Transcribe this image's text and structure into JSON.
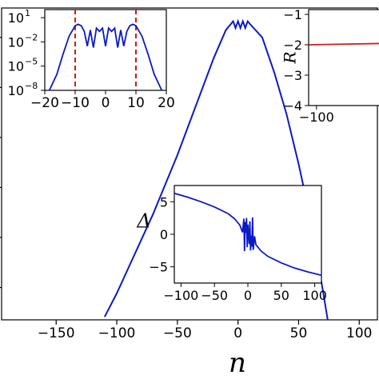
{
  "chart_data": [
    {
      "panel": "main",
      "type": "line",
      "xlabel": "n",
      "xlim": [
        -195,
        115
      ],
      "xticks": [
        "−150",
        "−100",
        "−50",
        "0",
        "50",
        "100"
      ],
      "xtick_values": [
        -150,
        -100,
        -50,
        0,
        50,
        100
      ],
      "color": "#0a1ac8",
      "series": [
        {
          "x": [
            -110,
            -100,
            -90,
            -80,
            -70,
            -60,
            -50,
            -40,
            -30,
            -20,
            -10,
            -6,
            -4,
            -2,
            0,
            2,
            4,
            6,
            8,
            10,
            20,
            30,
            40,
            50,
            60,
            70,
            74
          ],
          "y": [
            -0.02,
            0.06,
            0.15,
            0.24,
            0.33,
            0.43,
            0.53,
            0.64,
            0.75,
            0.86,
            0.955,
            0.975,
            0.985,
            0.962,
            0.985,
            0.962,
            0.985,
            0.962,
            0.985,
            0.975,
            0.93,
            0.81,
            0.67,
            0.5,
            0.31,
            0.07,
            -0.03
          ]
        }
      ],
      "ylim": [
        -0.03,
        1.03
      ]
    },
    {
      "panel": "inset-top-left",
      "type": "line",
      "yscale": "log",
      "xlim": [
        -20,
        20
      ],
      "ylim": [
        1e-08,
        100
      ],
      "xticks": [
        "−20",
        "−10",
        "0",
        "10",
        "20"
      ],
      "xtick_values": [
        -20,
        -10,
        0,
        10,
        20
      ],
      "yticks": [
        "10",
        "10",
        "10",
        "10"
      ],
      "ytick_exponents": [
        "1",
        "−2",
        "−5",
        "−8"
      ],
      "ytick_values": [
        10,
        0.01,
        1e-05,
        1e-08
      ],
      "vlines": [
        -10,
        10
      ],
      "vline_color": "#cc0000",
      "color": "#0a1ac8",
      "series": [
        {
          "x": [
            -18.5,
            -16,
            -14,
            -12,
            -10,
            -9,
            -8,
            -7,
            -6,
            -5,
            -4,
            -3,
            -2,
            -1,
            0,
            1,
            2,
            3,
            4,
            5,
            6,
            7,
            8,
            9,
            10,
            12,
            14,
            16,
            18.5
          ],
          "y": [
            1e-08,
            1e-06,
            0.0003,
            0.05,
            1,
            1.5,
            1,
            0.2,
            0.003,
            0.3,
            0.002,
            0.5,
            0.2,
            0.5,
            0.003,
            0.5,
            0.2,
            0.5,
            0.002,
            0.3,
            0.003,
            0.2,
            1,
            1.5,
            1,
            0.05,
            0.0003,
            1e-06,
            1e-08
          ]
        }
      ]
    },
    {
      "panel": "inset-top-right",
      "type": "line",
      "ylabel": "R",
      "xlim": [
        -110,
        110
      ],
      "ylim": [
        -4,
        -1
      ],
      "xticks": [
        "−100"
      ],
      "xtick_values": [
        -100
      ],
      "yticks": [
        "−1",
        "−2",
        "−3",
        "−4"
      ],
      "ytick_values": [
        -1,
        -2,
        -3,
        -4
      ],
      "color": "#cc2222",
      "series": [
        {
          "x": [
            -110,
            110
          ],
          "y": [
            -2.0,
            -1.9
          ]
        }
      ]
    },
    {
      "panel": "inset-middle",
      "type": "line",
      "ylabel": "Δ",
      "xlim": [
        -110,
        110
      ],
      "ylim": [
        -7.5,
        7.5
      ],
      "xticks": [
        "−100",
        "−50",
        "0",
        "50",
        "100"
      ],
      "xtick_values": [
        -100,
        -50,
        0,
        50,
        100
      ],
      "yticks": [
        "5",
        "0",
        "−5"
      ],
      "ytick_values": [
        5,
        0,
        -5
      ],
      "color": "#0a1ac8",
      "series": [
        {
          "x": [
            -110,
            -90,
            -70,
            -50,
            -30,
            -20,
            -12,
            -8,
            -6,
            -5,
            -4,
            -3,
            -2,
            -1,
            0,
            1,
            2,
            3,
            4,
            5,
            6,
            7,
            8,
            10,
            12,
            20,
            30,
            50,
            70,
            90,
            110
          ],
          "y": [
            6.3,
            5.7,
            5.0,
            4.2,
            3.2,
            2.4,
            1.4,
            0.3,
            2.4,
            -2.6,
            1.9,
            0.2,
            2.5,
            -2.0,
            1.5,
            0.0,
            -1.5,
            2.0,
            -2.5,
            -0.2,
            -1.9,
            2.6,
            -2.4,
            -0.3,
            -1.6,
            -2.6,
            -3.4,
            -4.4,
            -5.2,
            -5.8,
            -6.3
          ]
        }
      ]
    }
  ]
}
